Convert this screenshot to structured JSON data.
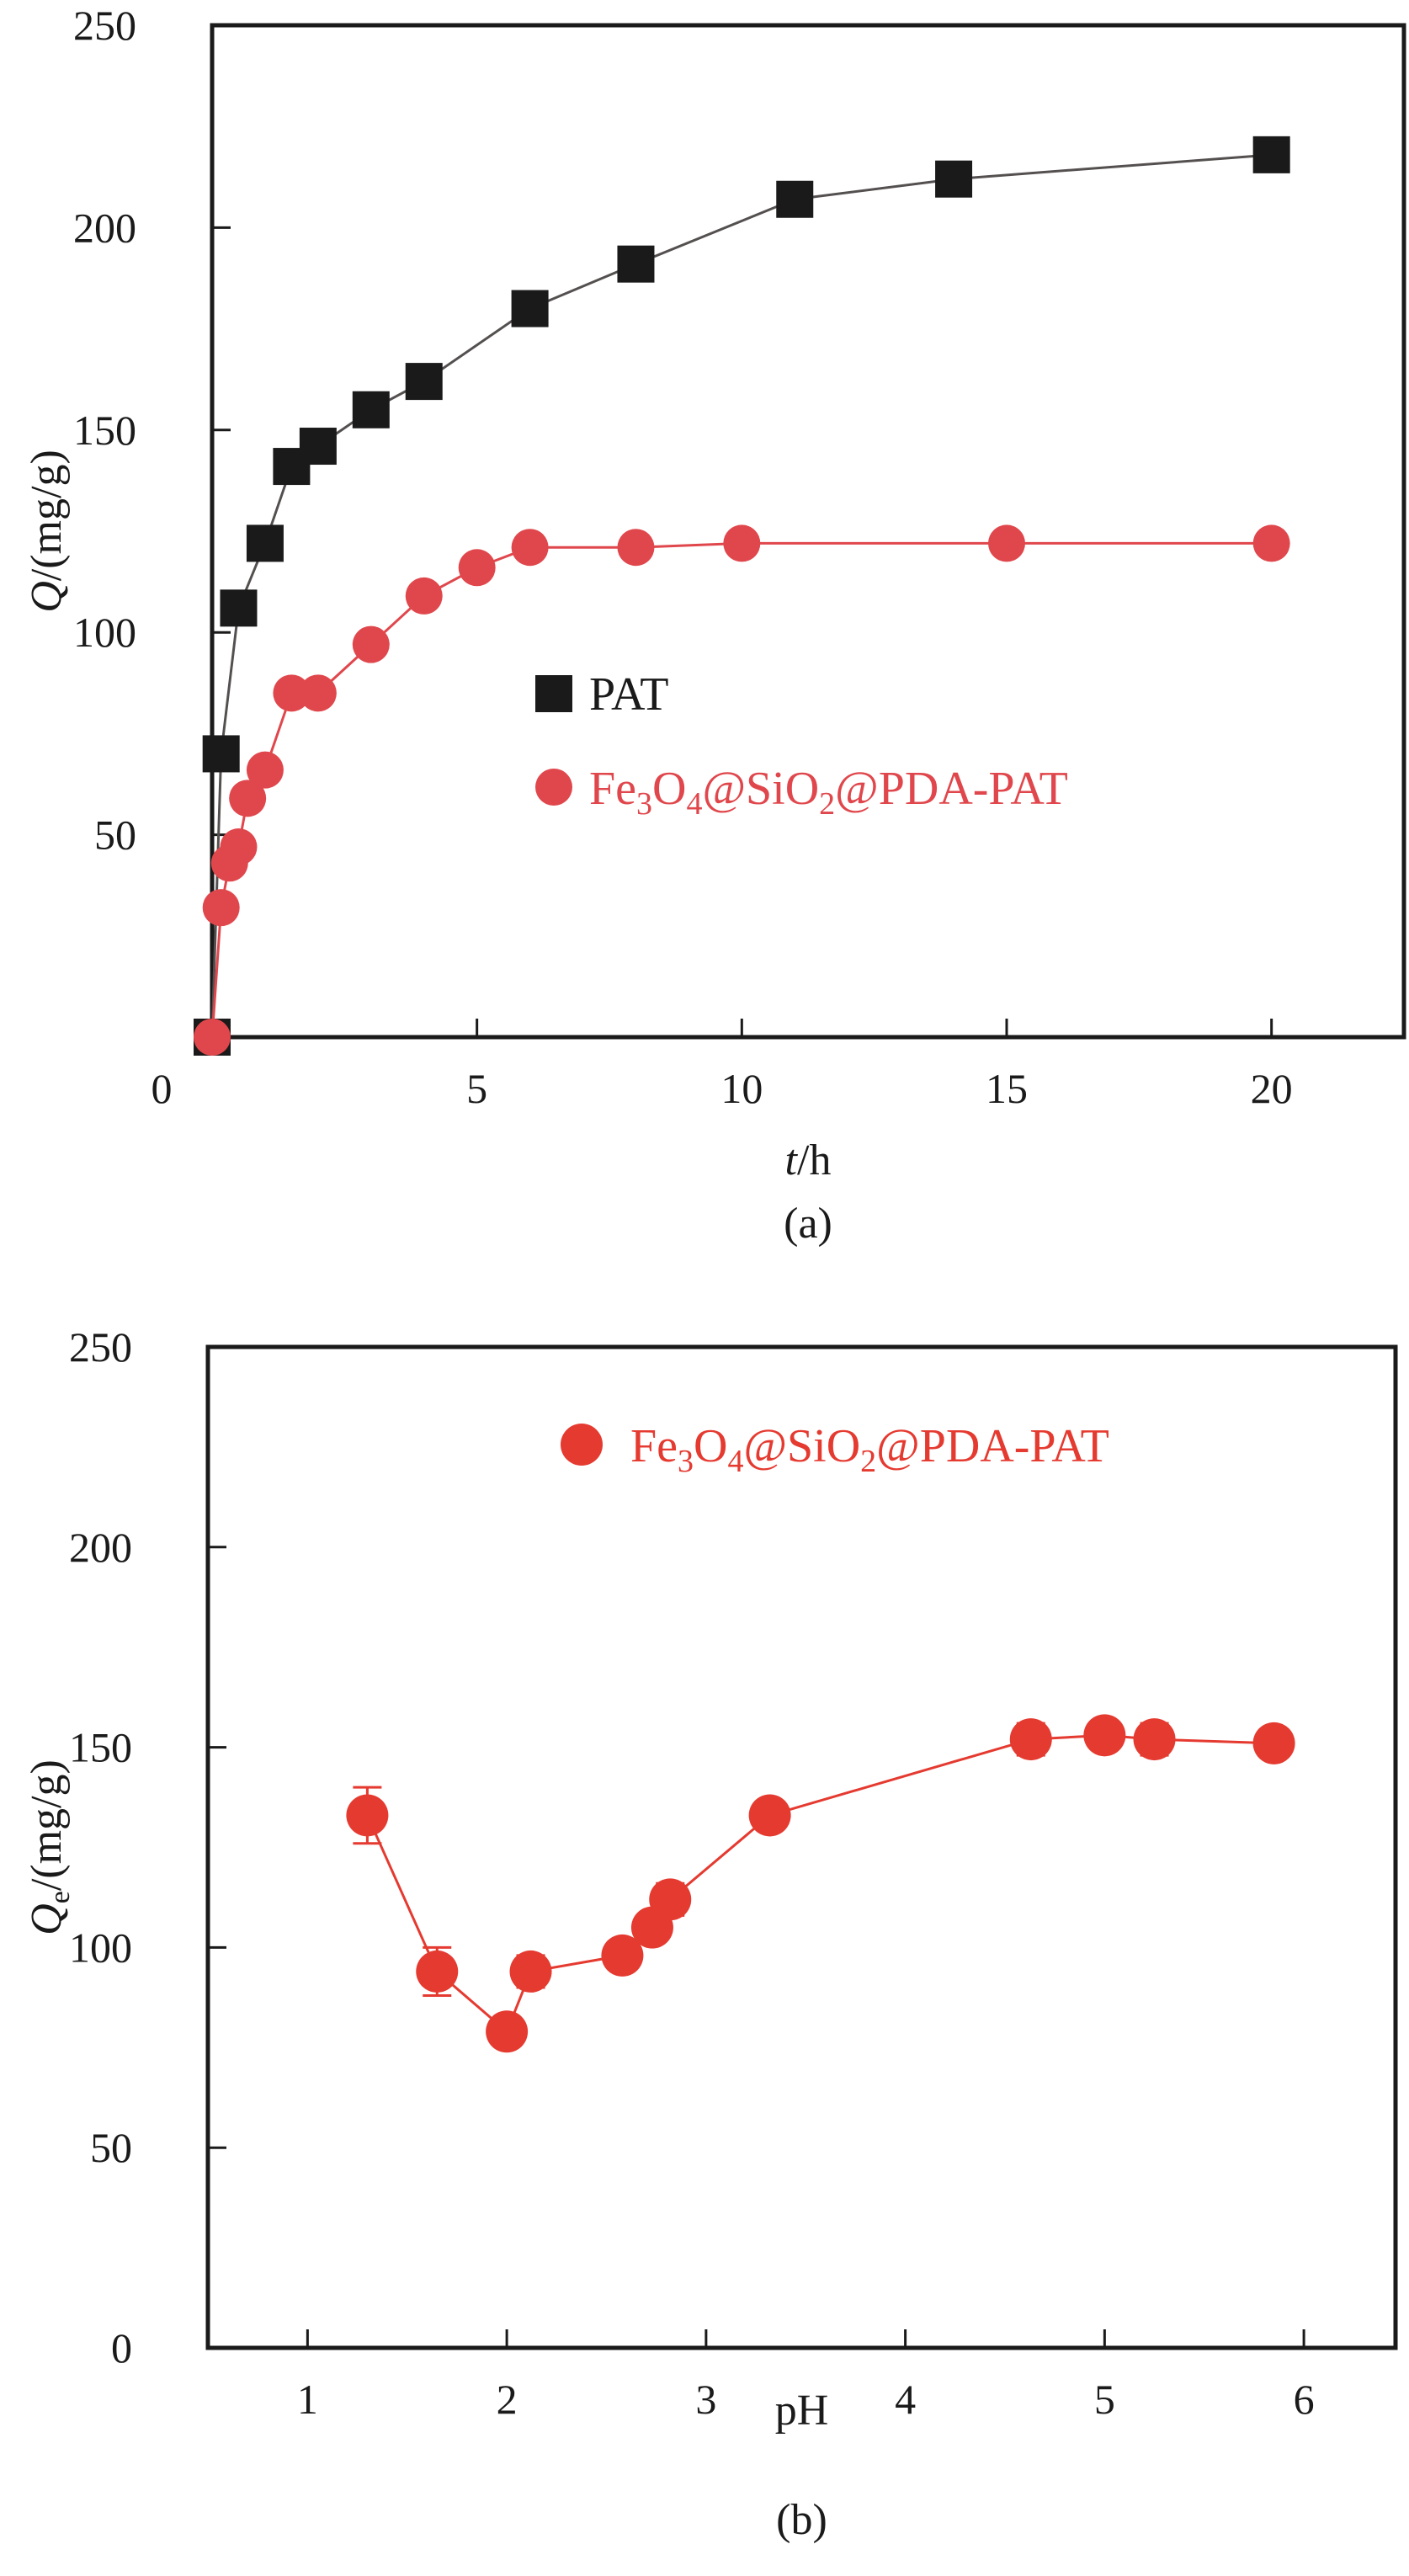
{
  "colors": {
    "axis": "#1a1a1a",
    "pat": "#1a1a1a",
    "pat_line": "#555050",
    "red_a": "#e0474c",
    "red_b": "#e53a30"
  },
  "chart_data": [
    {
      "type": "line",
      "panel_label": "(a)",
      "xlabel_italic": "t",
      "xlabel_rest": "/h",
      "ylabel_italic": "Q",
      "ylabel_rest": "/(mg/g)",
      "xlim": [
        0,
        22.5
      ],
      "ylim": [
        0,
        250
      ],
      "xticks": [
        0,
        5,
        10,
        15,
        20
      ],
      "xtick_labels": [
        "0",
        "5",
        "10",
        "15",
        "20"
      ],
      "yticks": [
        50,
        100,
        150,
        200,
        250
      ],
      "ytick_labels": [
        "50",
        "100",
        "150",
        "200",
        "250"
      ],
      "grid": false,
      "legend_position": "center",
      "series": [
        {
          "name": "PAT",
          "marker": "square",
          "x": [
            0,
            0.17,
            0.5,
            1,
            1.5,
            2,
            3,
            4,
            6,
            8,
            11,
            14,
            20
          ],
          "y": [
            0,
            70,
            106,
            122,
            141,
            146,
            155,
            162,
            180,
            191,
            207,
            212,
            218
          ]
        },
        {
          "name": "Fe3O4@SiO2@PDA-PAT",
          "name_parts": [
            "Fe",
            "3",
            "O",
            "4",
            "@SiO",
            "2",
            "@PDA-PAT"
          ],
          "marker": "circle",
          "x": [
            0,
            0.17,
            0.33,
            0.5,
            0.67,
            1,
            1.5,
            2,
            3,
            4,
            5,
            6,
            8,
            10,
            15,
            20
          ],
          "y": [
            0,
            32,
            43,
            47,
            59,
            66,
            85,
            85,
            97,
            109,
            116,
            121,
            121,
            122,
            122,
            122
          ]
        }
      ]
    },
    {
      "type": "line",
      "panel_label": "(b)",
      "xlabel": "pH",
      "ylabel_italic": "Q",
      "ylabel_sub": "e",
      "ylabel_rest": "/(mg/g)",
      "xlim": [
        0.5,
        6.46
      ],
      "ylim": [
        0,
        250
      ],
      "xticks": [
        1,
        2,
        3,
        4,
        5,
        6
      ],
      "xtick_labels": [
        "1",
        "2",
        "3",
        "4",
        "5",
        "6"
      ],
      "yticks": [
        0,
        50,
        100,
        150,
        200,
        250
      ],
      "ytick_labels": [
        "0",
        "50",
        "100",
        "150",
        "200",
        "250"
      ],
      "grid": false,
      "legend_position": "top-center",
      "series": [
        {
          "name": "Fe3O4@SiO2@PDA-PAT",
          "name_parts": [
            "Fe",
            "3",
            "O",
            "4",
            "@SiO",
            "2",
            "@PDA-PAT"
          ],
          "marker": "circle",
          "x": [
            1.3,
            1.65,
            2.0,
            2.12,
            2.58,
            2.73,
            2.82,
            3.32,
            4.63,
            5.0,
            5.25,
            5.85
          ],
          "y": [
            133,
            94,
            79,
            94,
            98,
            105,
            112,
            133,
            152,
            153,
            152,
            151
          ],
          "error": [
            7,
            6,
            0,
            4,
            0,
            0,
            4,
            0,
            4,
            2,
            4,
            0
          ]
        }
      ]
    }
  ]
}
